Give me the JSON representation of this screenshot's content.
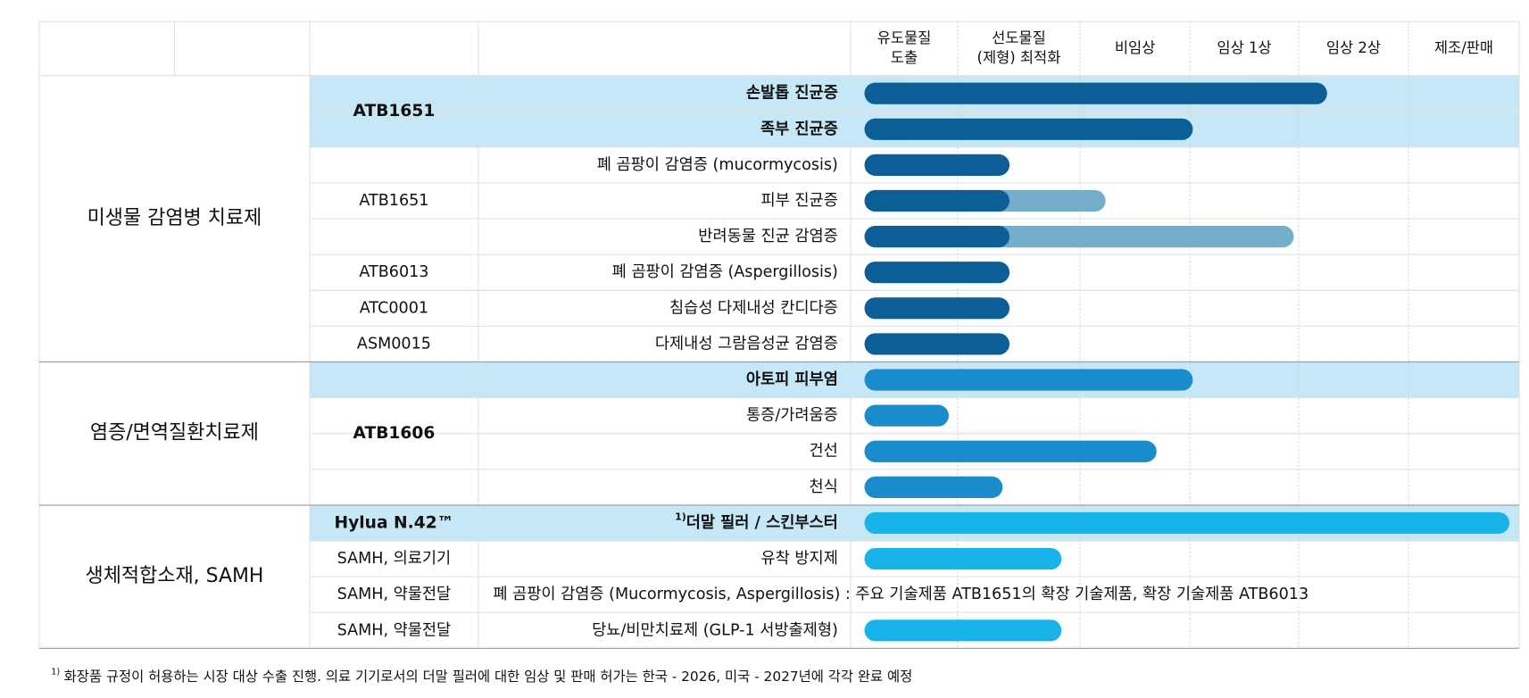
{
  "header": {
    "stages": [
      [
        "유도물질",
        "도출"
      ],
      [
        "선도물질",
        "(제형) 최적화"
      ],
      [
        "비임상"
      ],
      [
        "임상 1상"
      ],
      [
        "임상 2상"
      ],
      [
        "제조/판매"
      ]
    ]
  },
  "groups": [
    {
      "label": "미생물 감염병 치료제"
    },
    {
      "label": "염증/면역질환치료제"
    },
    {
      "label": "생체적합소재, SAMH"
    }
  ],
  "products": [
    {
      "label": "ATB1651"
    },
    {
      "label": "ATB1651"
    },
    {
      "label": "ATB6013"
    },
    {
      "label": "ATC0001"
    },
    {
      "label": "ASM0015"
    },
    {
      "label": "ATB1606"
    },
    {
      "label": "Hylua N.42™"
    },
    {
      "label": "SAMH, 의료기기"
    },
    {
      "label": "SAMH, 약물전달"
    },
    {
      "label": "SAMH, 약물전달"
    }
  ],
  "indications": [
    {
      "label": "손발톱 진균증"
    },
    {
      "label": "족부 진균증"
    },
    {
      "label": "폐 곰팡이 감염증 (mucormycosis)"
    },
    {
      "label": "피부 진균증"
    },
    {
      "label": "반려동물 진균 감염증"
    },
    {
      "label": "폐 곰팡이 감염증 (Aspergillosis)"
    },
    {
      "label": "침습성 다제내성 칸디다증"
    },
    {
      "label": "다제내성 그람음성균 감염증"
    },
    {
      "label": "아토피 피부염"
    },
    {
      "label": "통증/가려움증"
    },
    {
      "label": "건선"
    },
    {
      "label": "천식"
    },
    {
      "marker": "1)",
      "label": "더말 필러 / 스킨부스터"
    },
    {
      "label": "유착 방지제"
    },
    {
      "label": "폐 곰팡이 감염증 (Mucormycosis, Aspergillosis) : 주요 기술제품 ATB1651의 확장 기술제품, 확장 기술제품 ATB6013"
    },
    {
      "label": "당뇨/비만치료제 (GLP-1 서방출제형)"
    }
  ],
  "footnote": {
    "marker": "1)",
    "text": "화장품 규정이 허용하는 시장 대상 수출 진행. 의료 기기로서의 더말 필러에 대한 임상 및 판매 허가는 한국 - 2026, 미국 - 2027년에 각각 완료 예정"
  }
}
